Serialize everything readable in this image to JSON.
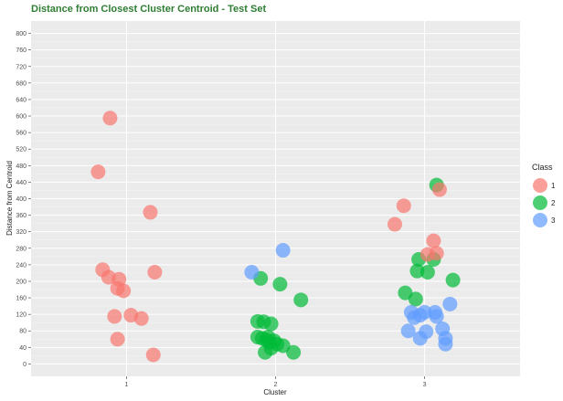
{
  "chart_data": {
    "type": "scatter",
    "title": "Distance from Closest Cluster Centroid - Test Set",
    "xlabel": "Cluster",
    "ylabel": "Distance from Centroid",
    "categories": [
      "1",
      "2",
      "3"
    ],
    "ylim": [
      -30,
      830
    ],
    "yticks": [
      0,
      40,
      80,
      120,
      160,
      200,
      240,
      280,
      320,
      360,
      400,
      440,
      480,
      520,
      560,
      600,
      640,
      680,
      720,
      760,
      800
    ],
    "grid": true,
    "legend": {
      "title": "Class",
      "position": "right"
    },
    "title_color": "#2e7d32",
    "panel_color": "#ebebeb",
    "series": [
      {
        "name": "1",
        "color": "#f8766d",
        "points": [
          {
            "x": 0.81,
            "y": 465
          },
          {
            "x": 0.89,
            "y": 595
          },
          {
            "x": 1.16,
            "y": 367
          },
          {
            "x": 0.84,
            "y": 228
          },
          {
            "x": 0.88,
            "y": 210
          },
          {
            "x": 0.95,
            "y": 205
          },
          {
            "x": 0.94,
            "y": 183
          },
          {
            "x": 0.98,
            "y": 177
          },
          {
            "x": 1.19,
            "y": 222
          },
          {
            "x": 0.92,
            "y": 115
          },
          {
            "x": 1.03,
            "y": 118
          },
          {
            "x": 1.1,
            "y": 110
          },
          {
            "x": 0.94,
            "y": 60
          },
          {
            "x": 1.18,
            "y": 22
          }
        ]
      },
      {
        "name": "2",
        "color": "#00ba38",
        "points": [
          {
            "x": 1.9,
            "y": 207
          },
          {
            "x": 2.03,
            "y": 193
          },
          {
            "x": 2.17,
            "y": 155
          },
          {
            "x": 1.88,
            "y": 103
          },
          {
            "x": 1.92,
            "y": 102
          },
          {
            "x": 1.97,
            "y": 97
          },
          {
            "x": 1.88,
            "y": 65
          },
          {
            "x": 1.91,
            "y": 62
          },
          {
            "x": 1.94,
            "y": 58
          },
          {
            "x": 1.96,
            "y": 52
          },
          {
            "x": 1.99,
            "y": 56
          },
          {
            "x": 2.01,
            "y": 48
          },
          {
            "x": 1.97,
            "y": 38
          },
          {
            "x": 1.93,
            "y": 28
          },
          {
            "x": 2.12,
            "y": 28
          },
          {
            "x": 2.05,
            "y": 44
          },
          {
            "x": 1.95,
            "y": 65
          },
          {
            "x": 3.08,
            "y": 433
          },
          {
            "x": 2.96,
            "y": 253
          },
          {
            "x": 2.95,
            "y": 225
          },
          {
            "x": 3.02,
            "y": 222
          },
          {
            "x": 3.06,
            "y": 253
          },
          {
            "x": 3.19,
            "y": 203
          },
          {
            "x": 2.87,
            "y": 172
          },
          {
            "x": 2.94,
            "y": 157
          }
        ]
      },
      {
        "name": "3",
        "color": "#619cff",
        "points": [
          {
            "x": 1.84,
            "y": 222
          },
          {
            "x": 2.05,
            "y": 275
          },
          {
            "x": 2.91,
            "y": 125
          },
          {
            "x": 2.93,
            "y": 112
          },
          {
            "x": 2.97,
            "y": 118
          },
          {
            "x": 3.0,
            "y": 125
          },
          {
            "x": 3.07,
            "y": 125
          },
          {
            "x": 3.08,
            "y": 115
          },
          {
            "x": 3.17,
            "y": 145
          },
          {
            "x": 2.89,
            "y": 80
          },
          {
            "x": 2.97,
            "y": 62
          },
          {
            "x": 3.01,
            "y": 78
          },
          {
            "x": 3.12,
            "y": 85
          },
          {
            "x": 3.14,
            "y": 62
          },
          {
            "x": 3.14,
            "y": 48
          }
        ]
      },
      {
        "name": "1",
        "color": "#f8766d",
        "points": [
          {
            "x": 2.8,
            "y": 338
          },
          {
            "x": 2.86,
            "y": 383
          },
          {
            "x": 3.1,
            "y": 422
          },
          {
            "x": 3.02,
            "y": 265
          },
          {
            "x": 3.06,
            "y": 298
          },
          {
            "x": 3.08,
            "y": 268
          }
        ]
      }
    ]
  }
}
